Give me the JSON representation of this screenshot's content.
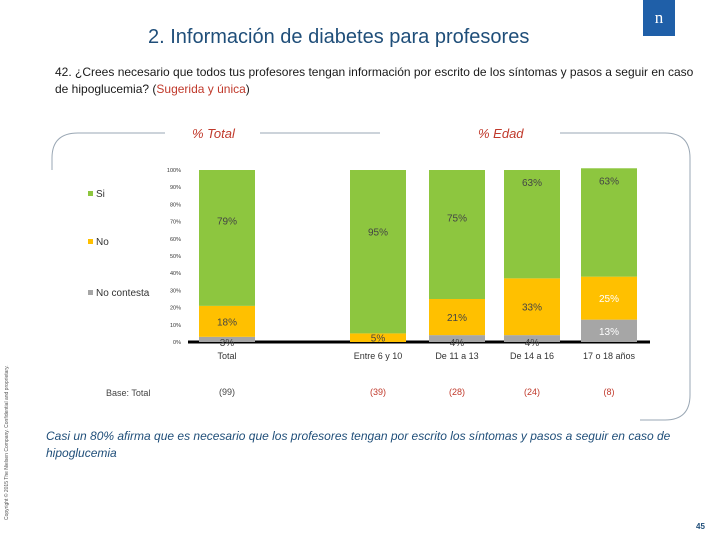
{
  "slide": {
    "title": "2. Información de diabetes para profesores",
    "logo_text": "n",
    "question_main": "42. ¿Crees necesario que todos tus profesores tengan información por escrito de los síntomas y pasos a seguir en caso de hipoglucemia? (",
    "question_highlight": "Sugerida y única",
    "question_end": ")",
    "left_group_label": "% Total",
    "right_group_label": "% Edad",
    "base_label": "Base: Total",
    "conclusion": "Casi un 80% afirma que es necesario que los profesores tengan por escrito los síntomas y pasos a seguir en caso de hipoglucemia",
    "page_number": "45",
    "copyright": "Copyright © 2015 The Nielsen Company. Confidential and proprietary."
  },
  "colors": {
    "si": "#8dc63f",
    "no": "#ffc000",
    "no_contesta": "#a6a6a6",
    "title": "#1f4e79",
    "accent": "#c0392b"
  },
  "chart_data": {
    "type": "bar",
    "stacked": true,
    "ylim": [
      0,
      100
    ],
    "yticks": [
      "0%",
      "10%",
      "20%",
      "30%",
      "40%",
      "50%",
      "60%",
      "70%",
      "80%",
      "90%",
      "100%"
    ],
    "categories": [
      "Total",
      "Entre 6 y 10",
      "De 11 a 13",
      "De 14 a 16",
      "17 o 18 años"
    ],
    "bases": [
      "(99)",
      "(39)",
      "(28)",
      "(24)",
      "(8)"
    ],
    "series": [
      {
        "name": "No contesta",
        "values": [
          3,
          0,
          4,
          4,
          13
        ],
        "labels": [
          "3%",
          "",
          "4%",
          "4%",
          "13%"
        ]
      },
      {
        "name": "No",
        "values": [
          18,
          5,
          21,
          33,
          25
        ],
        "labels": [
          "18%",
          "5%",
          "21%",
          "33%",
          "25%"
        ]
      },
      {
        "name": "Si",
        "values": [
          79,
          95,
          75,
          63,
          63
        ],
        "labels": [
          "79%",
          "95%",
          "75%",
          "63%",
          "63%"
        ]
      }
    ],
    "legend": [
      "Si",
      "No",
      "No contesta"
    ]
  }
}
